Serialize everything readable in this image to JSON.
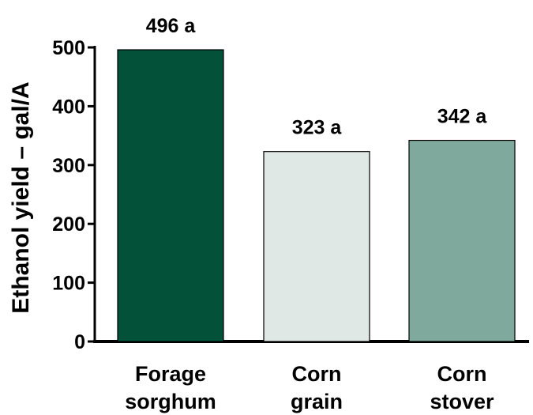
{
  "chart_data": {
    "type": "bar",
    "title": "",
    "xlabel": "",
    "ylabel": "Ethanol yield – gal/A",
    "ylim": [
      0,
      500
    ],
    "yticks": [
      "0",
      "100",
      "200",
      "300",
      "400",
      "500"
    ],
    "ytick_values": [
      0,
      100,
      200,
      300,
      400,
      500
    ],
    "grid": false,
    "legend": "none",
    "categories": [
      [
        "Forage",
        "sorghum"
      ],
      [
        "Corn",
        "grain"
      ],
      [
        "Corn",
        "stover"
      ]
    ],
    "values": [
      496,
      323,
      342
    ],
    "data_labels": [
      "496 a",
      "323 a",
      "342 a"
    ],
    "colors": [
      "#04513a",
      "#e0e8e5",
      "#7fa99d"
    ]
  }
}
